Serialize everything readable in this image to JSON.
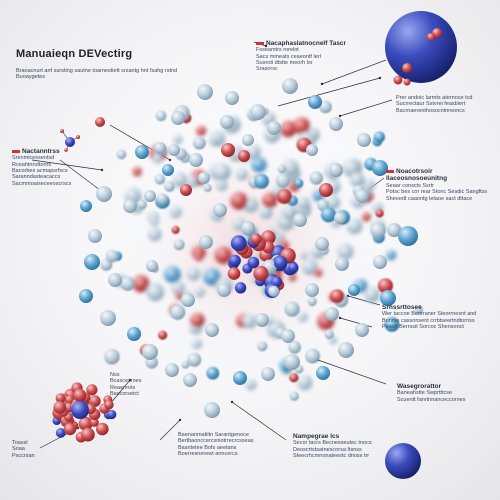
{
  "title": "Manuaieqn DEVectirg",
  "intro_lines": [
    "Braoacnurt anf sursting sautne  toarnestiett  srzantg hnt   fsahg   rstnd",
    "Buoaygetes"
  ],
  "callouts": [
    {
      "id": "top-right",
      "heading": "Nacaphaslatnocnelf Tascr",
      "lines": [
        "Fsseamtrs rorelot",
        "Sacs  mmeats   ceaeontf lerl",
        "Susroti  dtstte  meorh lsr",
        "Srasorsc"
      ]
    },
    {
      "id": "right-upper",
      "heading": "",
      "lines": [
        "Prer  andoic larmts  aternoce  tcd",
        "Sucrrectaur Sstvrei  feasbiert",
        "Bacrnaerenthosocntnreoncs"
      ]
    },
    {
      "id": "left-mid",
      "heading": "Nactanntrss",
      "lines": [
        "Srenmicessentsd",
        "Rceahtnruttonrs",
        "Bacorbes  acmapsrfscs",
        "Saranndasteacaccs",
        "Sacmmoaiseceeoscrscs"
      ]
    },
    {
      "id": "right-mid",
      "heading": "Noacotrsoir llaceosnosoeunitng",
      "lines": [
        "Seaar  conscts  Ssrtr",
        "Potsc  bes cor  rear Stonc  Sesdic  Sangftss",
        "Sheoedt  caaontg  letaoe  sact  dttace"
      ]
    },
    {
      "id": "right-lower",
      "heading": "Srnssrttosee",
      "lines": [
        "Wer  taccoe  Benrraner  Steorrnesnt  and",
        "Bonrse  cassonsent   crrbtseertndtornss",
        "Pescrt  Berrssit  Sorcoc  Shensonct"
      ]
    },
    {
      "id": "right-bottom",
      "heading": "Wasegrorattor",
      "lines": [
        "Baneahstte Swprtttcse",
        "Scuentt  fanrtnnanceccornes"
      ]
    },
    {
      "id": "bottom-right",
      "heading": "Nampegrae  lcs",
      "lines": [
        "Secor  tacrs  Becnesseutec  tnocs",
        "Deoscrtstsatnescorsa  Itsnss",
        "Steecrhcmnonateestc  dnoss  trr"
      ]
    },
    {
      "id": "bottom-center",
      "heading": "",
      "lines": [
        "Baenanmatiitn  Sarantgenoce",
        "Bertbaonccercsniotrrecrcsseas",
        "Basntetee  Bofs aeetans",
        "Boerresnerewt  anncercs"
      ]
    },
    {
      "id": "bottom-left",
      "heading": "",
      "lines": [
        "Nss",
        "Bcascesroes",
        "Reaenrots",
        "Baccorsetct"
      ]
    },
    {
      "id": "bottom-left-small",
      "heading": "",
      "lines": [
        "Toassl",
        "Soaa",
        "Psccrsan"
      ]
    }
  ],
  "colors": {
    "neutral": "#a9bfd0",
    "blue": "#5b9dc6",
    "red": "#c8535a",
    "core_blue": "#3f4fc4",
    "sphere": "#3446b0",
    "line": "#2b2f3a"
  }
}
